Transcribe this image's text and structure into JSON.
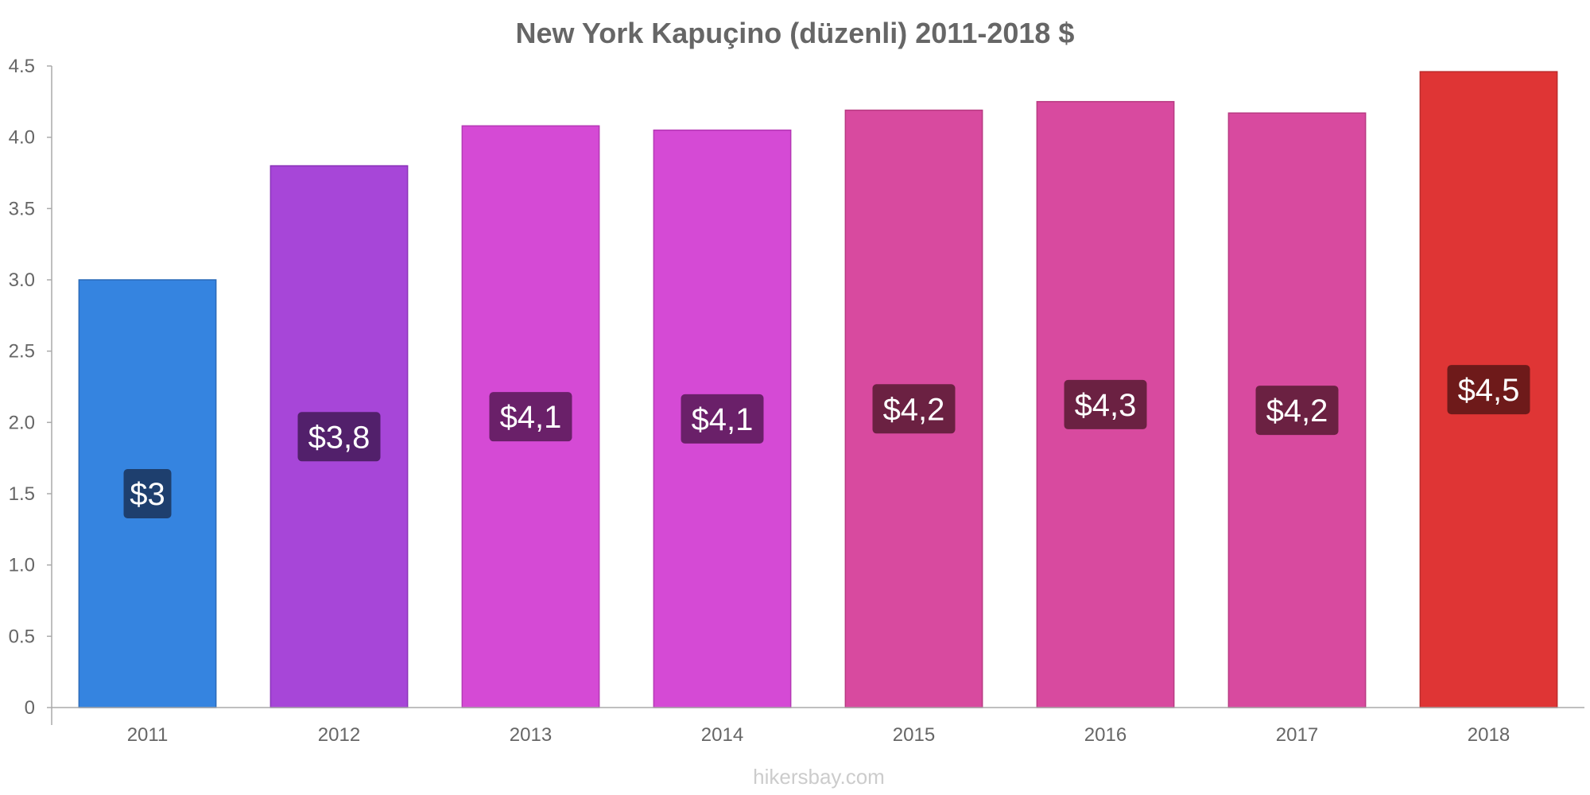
{
  "chart_data": {
    "type": "bar",
    "title": "New York Kapuçino (düzenli) 2011-2018 $",
    "categories": [
      "2011",
      "2012",
      "2013",
      "2014",
      "2015",
      "2016",
      "2017",
      "2018"
    ],
    "values": [
      3.0,
      3.8,
      4.08,
      4.05,
      4.19,
      4.25,
      4.17,
      4.46
    ],
    "data_labels": [
      "$3",
      "$3,8",
      "$4,1",
      "$4,1",
      "$4,2",
      "$4,3",
      "$4,2",
      "$4,5"
    ],
    "bar_colors": [
      "#3584e0",
      "#a746d8",
      "#d54ad5",
      "#d54ad5",
      "#d84a9f",
      "#d84a9f",
      "#d84a9f",
      "#df3535"
    ],
    "bar_stroke_colors": [
      "#2a6ab8",
      "#8a34b8",
      "#b538b5",
      "#b538b5",
      "#b83a82",
      "#b83a82",
      "#b83a82",
      "#bb2a2a"
    ],
    "label_bg_colors": [
      "#1e3f6e",
      "#52206b",
      "#6a2069",
      "#6a2069",
      "#6b2142",
      "#6b2142",
      "#6b2142",
      "#6e1a1a"
    ],
    "ylim": [
      0,
      4.5
    ],
    "yticks": [
      0,
      0.5,
      1.0,
      1.5,
      2.0,
      2.5,
      3.0,
      3.5,
      4.0,
      4.5
    ],
    "ytick_labels": [
      "0",
      "0.5",
      "1.0",
      "1.5",
      "2.0",
      "2.5",
      "3.0",
      "3.5",
      "4.0",
      "4.5"
    ],
    "xlabel": "",
    "ylabel": "",
    "grid": false,
    "legend": "none"
  },
  "watermark": "hikersbay.com"
}
